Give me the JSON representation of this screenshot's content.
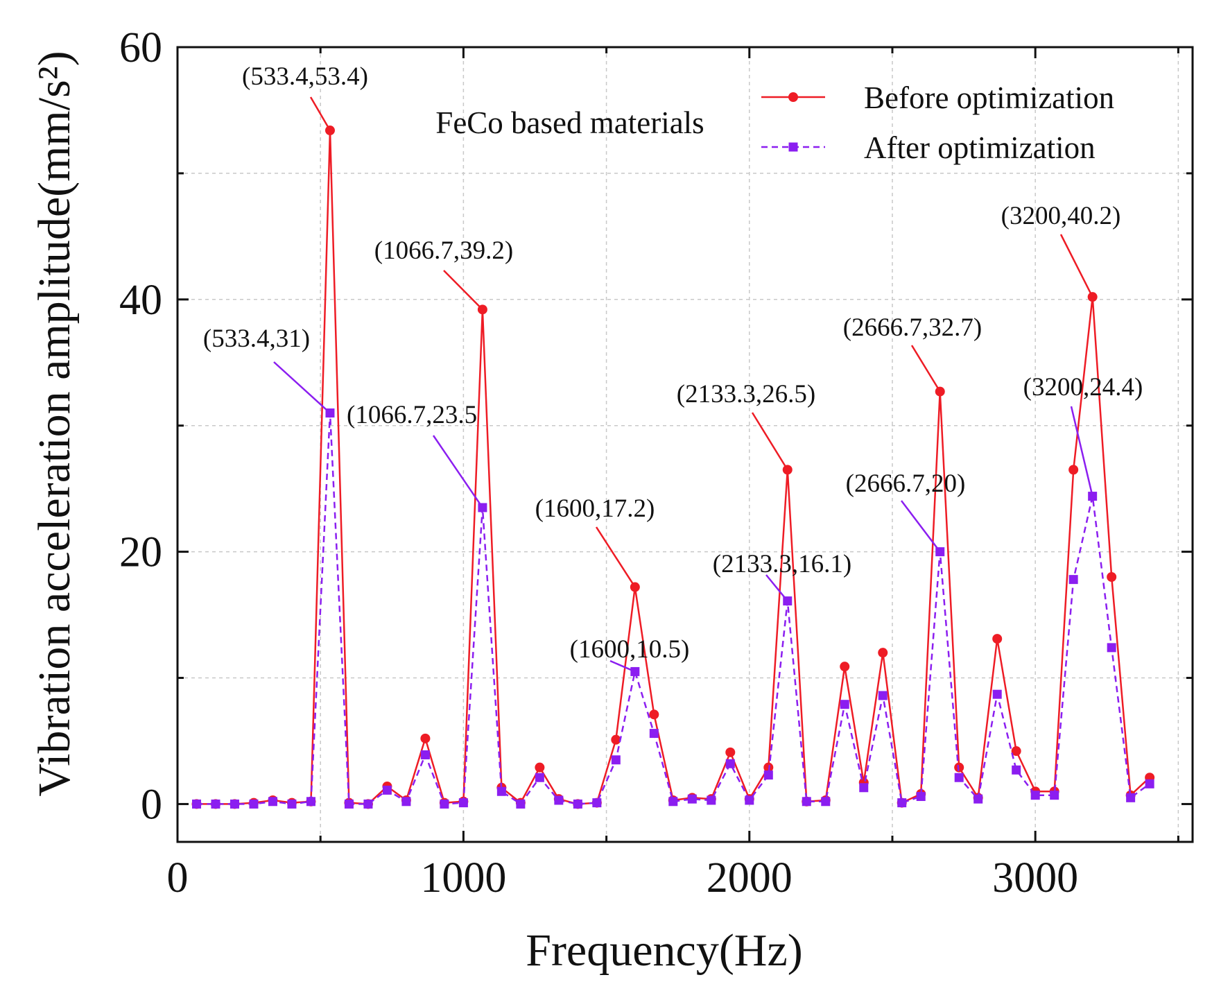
{
  "chart_data": {
    "type": "line",
    "title": "FeCo based materials",
    "xlabel": "Frequency(Hz)",
    "ylabel": "Vibration acceleration amplitude(mm/s²)",
    "xlim": [
      0,
      3550
    ],
    "ylim": [
      -3,
      60
    ],
    "xticks": [
      0,
      1000,
      2000,
      3000
    ],
    "yticks": [
      0,
      20,
      40,
      60
    ],
    "grid": true,
    "legend_position": "top-right",
    "x": [
      66.7,
      133.3,
      200,
      266.7,
      333.3,
      400,
      466.7,
      533.4,
      600,
      666.7,
      733.3,
      800,
      866.7,
      933.3,
      1000,
      1066.7,
      1133.3,
      1200,
      1266.7,
      1333.3,
      1400,
      1466.7,
      1533.3,
      1600,
      1666.7,
      1733.3,
      1800,
      1866.7,
      1933.3,
      2000,
      2066.7,
      2133.3,
      2200,
      2266.7,
      2333.3,
      2400,
      2466.7,
      2533.3,
      2600,
      2666.7,
      2733.3,
      2800,
      2866.7,
      2933.3,
      3000,
      3066.7,
      3133.3,
      3200,
      3266.7,
      3333.3,
      3400
    ],
    "series": [
      {
        "name": "Before optimization",
        "color": "#ee1c25",
        "line_style": "solid",
        "marker": "circle",
        "values": [
          0,
          0,
          0,
          0.1,
          0.3,
          0.1,
          0.2,
          53.4,
          0.1,
          0,
          1.4,
          0.3,
          5.2,
          0.1,
          0.2,
          39.2,
          1.3,
          0.1,
          2.9,
          0.4,
          0,
          0.1,
          5.1,
          17.2,
          7.1,
          0.3,
          0.5,
          0.4,
          4.1,
          0.4,
          2.9,
          26.5,
          0.2,
          0.3,
          10.9,
          1.7,
          12,
          0.1,
          0.8,
          32.7,
          2.9,
          0.5,
          13.1,
          4.2,
          1,
          1,
          26.5,
          40.2,
          18,
          0.7,
          2.1
        ]
      },
      {
        "name": "After optimization",
        "color": "#8b1ef0",
        "line_style": "dashed",
        "marker": "square",
        "values": [
          0,
          0,
          0,
          0,
          0.2,
          0,
          0.2,
          31,
          0,
          0,
          1.1,
          0.2,
          3.9,
          0,
          0.1,
          23.5,
          1,
          0,
          2.1,
          0.3,
          0,
          0.1,
          3.5,
          10.5,
          5.6,
          0.2,
          0.4,
          0.3,
          3.2,
          0.3,
          2.3,
          16.1,
          0.2,
          0.2,
          7.9,
          1.3,
          8.6,
          0.1,
          0.6,
          20,
          2.1,
          0.4,
          8.7,
          2.7,
          0.7,
          0.7,
          17.8,
          24.4,
          12.4,
          0.5,
          1.6
        ]
      }
    ],
    "annotations": [
      {
        "text": "(533.4,53.4)",
        "series": 0,
        "x": 533.4,
        "y": 53.4
      },
      {
        "text": "(1066.7,39.2)",
        "series": 0,
        "x": 1066.7,
        "y": 39.2
      },
      {
        "text": "(1600,17.2)",
        "series": 0,
        "x": 1600,
        "y": 17.2
      },
      {
        "text": "(2133.3,26.5)",
        "series": 0,
        "x": 2133.3,
        "y": 26.5
      },
      {
        "text": "(2666.7,32.7)",
        "series": 0,
        "x": 2666.7,
        "y": 32.7
      },
      {
        "text": "(3200,40.2)",
        "series": 0,
        "x": 3200,
        "y": 40.2
      },
      {
        "text": "(533.4,31)",
        "series": 1,
        "x": 533.4,
        "y": 31
      },
      {
        "text": "(1066.7,23.5",
        "series": 1,
        "x": 1066.7,
        "y": 23.5
      },
      {
        "text": "(1600,10.5)",
        "series": 1,
        "x": 1600,
        "y": 10.5
      },
      {
        "text": "(2133.3,16.1)",
        "series": 1,
        "x": 2133.3,
        "y": 16.1
      },
      {
        "text": "(2666.7,20)",
        "series": 1,
        "x": 2666.7,
        "y": 20
      },
      {
        "text": "(3200,24.4)",
        "series": 1,
        "x": 3200,
        "y": 24.4
      }
    ]
  }
}
